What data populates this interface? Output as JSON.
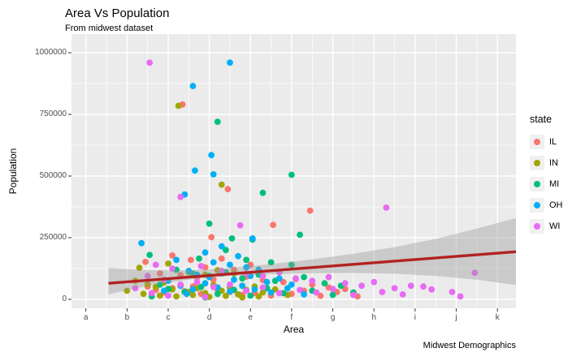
{
  "chart": {
    "title": "Area Vs Population",
    "subtitle": "From midwest dataset",
    "caption": "Midwest Demographics",
    "xlabel": "Area",
    "ylabel": "Population"
  },
  "legend": {
    "title": "state",
    "items": [
      {
        "label": "IL",
        "color": "#F8766D"
      },
      {
        "label": "IN",
        "color": "#A3A500"
      },
      {
        "label": "MI",
        "color": "#00BF7D"
      },
      {
        "label": "OH",
        "color": "#00B0F6"
      },
      {
        "label": "WI",
        "color": "#E76BF3"
      }
    ]
  },
  "style": {
    "panel_bg": "#EBEBEB",
    "grid_color": "#FFFFFF",
    "tick_text_color": "#4D4D4D",
    "band_color": "#999999",
    "trend_color": "#B22222"
  },
  "chart_data": {
    "type": "scatter",
    "title": "Area Vs Population",
    "subtitle": "From midwest dataset",
    "caption": "Midwest Demographics",
    "xlabel": "Area",
    "ylabel": "Population",
    "legend_title": "state",
    "legend_position": "right",
    "grid": true,
    "x_tick_labels": [
      "a",
      "b",
      "c",
      "d",
      "e",
      "f",
      "g",
      "h",
      "i",
      "j",
      "k"
    ],
    "x_unit_note": "x coordinates expressed in tick units, a=0 ... k=10",
    "y_ticks": [
      {
        "label": "0",
        "value": 0
      },
      {
        "label": "250000",
        "value": 250000
      },
      {
        "label": "500000",
        "value": 500000
      },
      {
        "label": "750000",
        "value": 750000
      },
      {
        "label": "1000000",
        "value": 1000000
      }
    ],
    "ylim": [
      0,
      1000000
    ],
    "series": [
      {
        "name": "IL",
        "color": "#F8766D",
        "points": [
          [
            2.35,
            790000
          ],
          [
            3.45,
            447000
          ],
          [
            5.45,
            360000
          ],
          [
            4.55,
            302000
          ],
          [
            3.05,
            252000
          ],
          [
            2.1,
            178000
          ],
          [
            1.45,
            152000
          ],
          [
            2.55,
            160000
          ],
          [
            3.3,
            165000
          ],
          [
            4.0,
            140000
          ],
          [
            2.9,
            130000
          ],
          [
            3.6,
            120000
          ],
          [
            1.8,
            105000
          ],
          [
            2.3,
            98000
          ],
          [
            2.7,
            88000
          ],
          [
            3.1,
            80000
          ],
          [
            3.9,
            92000
          ],
          [
            4.3,
            78000
          ],
          [
            4.8,
            70000
          ],
          [
            5.1,
            82000
          ],
          [
            5.5,
            60000
          ],
          [
            5.9,
            48000
          ],
          [
            6.1,
            30000
          ],
          [
            1.5,
            52000
          ],
          [
            1.7,
            38000
          ],
          [
            1.9,
            28000
          ],
          [
            2.1,
            45000
          ],
          [
            2.4,
            33000
          ],
          [
            2.6,
            52000
          ],
          [
            2.8,
            22000
          ],
          [
            3.2,
            40000
          ],
          [
            3.5,
            30000
          ],
          [
            3.8,
            18000
          ],
          [
            4.1,
            26000
          ],
          [
            4.5,
            15000
          ],
          [
            5.0,
            22000
          ],
          [
            5.3,
            35000
          ],
          [
            5.7,
            14000
          ],
          [
            6.3,
            42000
          ],
          [
            6.6,
            12000
          ]
        ]
      },
      {
        "name": "IN",
        "color": "#A3A500",
        "points": [
          [
            2.25,
            785000
          ],
          [
            3.3,
            465000
          ],
          [
            1.3,
            128000
          ],
          [
            2.0,
            145000
          ],
          [
            2.5,
            110000
          ],
          [
            2.9,
            100000
          ],
          [
            3.2,
            118000
          ],
          [
            3.6,
            105000
          ],
          [
            1.2,
            75000
          ],
          [
            1.5,
            62000
          ],
          [
            1.7,
            50000
          ],
          [
            1.9,
            68000
          ],
          [
            2.1,
            40000
          ],
          [
            2.3,
            55000
          ],
          [
            2.5,
            30000
          ],
          [
            2.7,
            45000
          ],
          [
            2.9,
            25000
          ],
          [
            3.1,
            58000
          ],
          [
            3.3,
            35000
          ],
          [
            3.5,
            48000
          ],
          [
            3.7,
            20000
          ],
          [
            3.9,
            38000
          ],
          [
            4.1,
            52000
          ],
          [
            4.3,
            28000
          ],
          [
            4.6,
            40000
          ],
          [
            4.9,
            18000
          ],
          [
            1.0,
            35000
          ],
          [
            1.4,
            22000
          ],
          [
            1.8,
            15000
          ],
          [
            2.2,
            12000
          ],
          [
            2.6,
            18000
          ],
          [
            3.0,
            10000
          ],
          [
            3.4,
            14000
          ],
          [
            3.8,
            8000
          ],
          [
            4.2,
            12000
          ]
        ]
      },
      {
        "name": "MI",
        "color": "#00BF7D",
        "points": [
          [
            3.2,
            720000
          ],
          [
            5.0,
            505000
          ],
          [
            4.3,
            432000
          ],
          [
            3.0,
            307000
          ],
          [
            5.2,
            262000
          ],
          [
            3.55,
            247000
          ],
          [
            4.05,
            242000
          ],
          [
            1.55,
            180000
          ],
          [
            3.4,
            200000
          ],
          [
            2.75,
            165000
          ],
          [
            3.9,
            160000
          ],
          [
            4.5,
            150000
          ],
          [
            5.0,
            140000
          ],
          [
            2.2,
            120000
          ],
          [
            2.6,
            105000
          ],
          [
            3.0,
            95000
          ],
          [
            3.4,
            110000
          ],
          [
            3.8,
            85000
          ],
          [
            4.2,
            100000
          ],
          [
            4.6,
            75000
          ],
          [
            5.3,
            90000
          ],
          [
            5.8,
            65000
          ],
          [
            6.2,
            55000
          ],
          [
            1.8,
            60000
          ],
          [
            2.0,
            42000
          ],
          [
            2.4,
            30000
          ],
          [
            2.8,
            50000
          ],
          [
            3.2,
            22000
          ],
          [
            3.6,
            38000
          ],
          [
            4.0,
            15000
          ],
          [
            4.4,
            45000
          ],
          [
            4.8,
            25000
          ],
          [
            5.5,
            35000
          ],
          [
            6.0,
            18000
          ],
          [
            6.5,
            28000
          ],
          [
            1.6,
            12000
          ],
          [
            2.9,
            8000
          ]
        ]
      },
      {
        "name": "OH",
        "color": "#00B0F6",
        "points": [
          [
            3.5,
            960000
          ],
          [
            2.6,
            865000
          ],
          [
            3.05,
            585000
          ],
          [
            2.65,
            522000
          ],
          [
            3.1,
            507000
          ],
          [
            2.4,
            425000
          ],
          [
            1.35,
            228000
          ],
          [
            4.05,
            247000
          ],
          [
            3.3,
            215000
          ],
          [
            2.9,
            190000
          ],
          [
            3.7,
            175000
          ],
          [
            2.2,
            160000
          ],
          [
            3.1,
            150000
          ],
          [
            3.5,
            140000
          ],
          [
            3.9,
            130000
          ],
          [
            4.2,
            120000
          ],
          [
            2.5,
            115000
          ],
          [
            2.7,
            100000
          ],
          [
            3.0,
            90000
          ],
          [
            3.3,
            105000
          ],
          [
            3.6,
            80000
          ],
          [
            4.0,
            95000
          ],
          [
            4.4,
            70000
          ],
          [
            4.7,
            85000
          ],
          [
            5.0,
            60000
          ],
          [
            2.0,
            75000
          ],
          [
            2.3,
            55000
          ],
          [
            2.6,
            40000
          ],
          [
            2.9,
            65000
          ],
          [
            3.2,
            48000
          ],
          [
            3.5,
            32000
          ],
          [
            3.8,
            55000
          ],
          [
            4.1,
            40000
          ],
          [
            4.5,
            28000
          ],
          [
            4.9,
            45000
          ],
          [
            5.3,
            20000
          ],
          [
            1.9,
            35000
          ],
          [
            2.45,
            22000
          ]
        ]
      },
      {
        "name": "WI",
        "color": "#E76BF3",
        "points": [
          [
            1.55,
            960000
          ],
          [
            7.3,
            372000
          ],
          [
            3.75,
            300000
          ],
          [
            2.3,
            415000
          ],
          [
            1.7,
            140000
          ],
          [
            2.1,
            125000
          ],
          [
            2.8,
            135000
          ],
          [
            3.3,
            115000
          ],
          [
            3.9,
            105000
          ],
          [
            4.3,
            95000
          ],
          [
            4.7,
            110000
          ],
          [
            5.1,
            85000
          ],
          [
            5.5,
            75000
          ],
          [
            5.9,
            90000
          ],
          [
            6.3,
            65000
          ],
          [
            6.7,
            55000
          ],
          [
            7.0,
            70000
          ],
          [
            7.5,
            45000
          ],
          [
            7.9,
            55000
          ],
          [
            8.4,
            40000
          ],
          [
            8.9,
            30000
          ],
          [
            9.1,
            12000
          ],
          [
            9.45,
            108000
          ],
          [
            1.5,
            95000
          ],
          [
            1.9,
            80000
          ],
          [
            2.3,
            60000
          ],
          [
            2.7,
            70000
          ],
          [
            3.1,
            50000
          ],
          [
            3.5,
            60000
          ],
          [
            3.9,
            35000
          ],
          [
            4.3,
            48000
          ],
          [
            4.7,
            25000
          ],
          [
            5.2,
            38000
          ],
          [
            5.6,
            28000
          ],
          [
            6.0,
            42000
          ],
          [
            6.5,
            18000
          ],
          [
            7.2,
            30000
          ],
          [
            7.7,
            20000
          ],
          [
            8.2,
            52000
          ],
          [
            1.2,
            45000
          ],
          [
            1.6,
            25000
          ],
          [
            2.0,
            15000
          ],
          [
            2.9,
            10000
          ]
        ]
      }
    ],
    "trend": {
      "type": "linear",
      "color": "#B22222",
      "x": [
        0.55,
        10.45
      ],
      "y": [
        65000,
        193000
      ],
      "confidence_band": [
        [
          0.55,
          20000,
          128000
        ],
        [
          1.5,
          55000,
          118000
        ],
        [
          2.5,
          80000,
          118000
        ],
        [
          3.5,
          95000,
          127000
        ],
        [
          4.5,
          102000,
          143000
        ],
        [
          5.5,
          106000,
          162000
        ],
        [
          6.5,
          107000,
          185000
        ],
        [
          7.5,
          104000,
          212000
        ],
        [
          8.5,
          95000,
          245000
        ],
        [
          9.5,
          80000,
          287000
        ],
        [
          10.45,
          58000,
          330000
        ]
      ]
    }
  }
}
